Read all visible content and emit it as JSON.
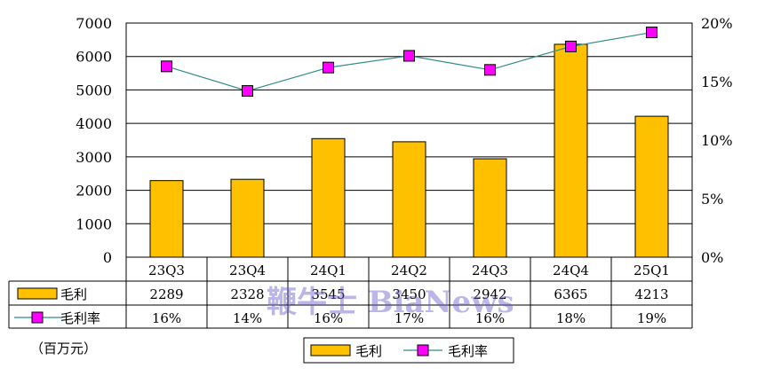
{
  "chart_data": {
    "type": "bar",
    "categories": [
      "23Q3",
      "23Q4",
      "24Q1",
      "24Q2",
      "24Q3",
      "24Q4",
      "25Q1"
    ],
    "series": [
      {
        "name": "毛利",
        "type": "bar",
        "axis": "left",
        "values": [
          2289,
          2328,
          3545,
          3450,
          2942,
          6365,
          4213
        ],
        "labels": [
          "2289",
          "2328",
          "3545",
          "3450",
          "2942",
          "6365",
          "4213"
        ],
        "color": "#FFC000"
      },
      {
        "name": "毛利率",
        "type": "line",
        "axis": "right",
        "values": [
          0.16,
          0.14,
          0.16,
          0.17,
          0.16,
          0.18,
          0.19
        ],
        "plotted_values": [
          0.163,
          0.142,
          0.162,
          0.172,
          0.16,
          0.18,
          0.192
        ],
        "labels": [
          "16%",
          "14%",
          "16%",
          "17%",
          "16%",
          "18%",
          "19%"
        ],
        "line_color": "#2E8B8B",
        "marker_color": "#FF00FF"
      }
    ],
    "y_left": {
      "min": 0,
      "max": 7000,
      "ticks": [
        0,
        1000,
        2000,
        3000,
        4000,
        5000,
        6000,
        7000
      ],
      "tick_labels": [
        "0",
        "1000",
        "2000",
        "3000",
        "4000",
        "5000",
        "6000",
        "7000"
      ]
    },
    "y_right": {
      "min": 0,
      "max": 0.2,
      "ticks": [
        0,
        0.05,
        0.1,
        0.15,
        0.2
      ],
      "tick_labels": [
        "0%",
        "5%",
        "10%",
        "15%",
        "20%"
      ]
    },
    "grid": true,
    "data_table": true,
    "legend_position": "bottom-center",
    "unit_note": "（百万元）",
    "watermark": "鞭牛士 BiaNews"
  }
}
